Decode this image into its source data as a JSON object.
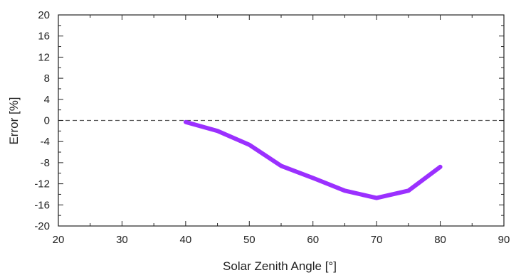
{
  "chart_data": {
    "type": "line",
    "title": "",
    "xlabel": "Solar Zenith Angle [°]",
    "ylabel": "Error [%]",
    "xlim": [
      20,
      90
    ],
    "ylim": [
      -20,
      20
    ],
    "x_ticks": [
      20,
      30,
      40,
      50,
      60,
      70,
      80,
      90
    ],
    "y_ticks": [
      20,
      16,
      12,
      8,
      4,
      0,
      -4,
      -8,
      -12,
      -16,
      -20
    ],
    "x_tick_labels": [
      "20",
      "30",
      "40",
      "50",
      "60",
      "70",
      "80",
      "90"
    ],
    "y_tick_labels": [
      "20",
      "16",
      "12",
      "8",
      "4",
      "0",
      "-4",
      "-8",
      "-12",
      "-16",
      "-20"
    ],
    "grid": false,
    "reference_line": {
      "y": 0,
      "style": "dashed",
      "color": "#555555"
    },
    "series": [
      {
        "color": "#9b30ff",
        "x": [
          40,
          45,
          50,
          55,
          60,
          65,
          70,
          75,
          80
        ],
        "y": [
          -0.3,
          -2.0,
          -4.6,
          -8.6,
          -10.9,
          -13.3,
          -14.7,
          -13.3,
          -8.8
        ]
      }
    ]
  }
}
